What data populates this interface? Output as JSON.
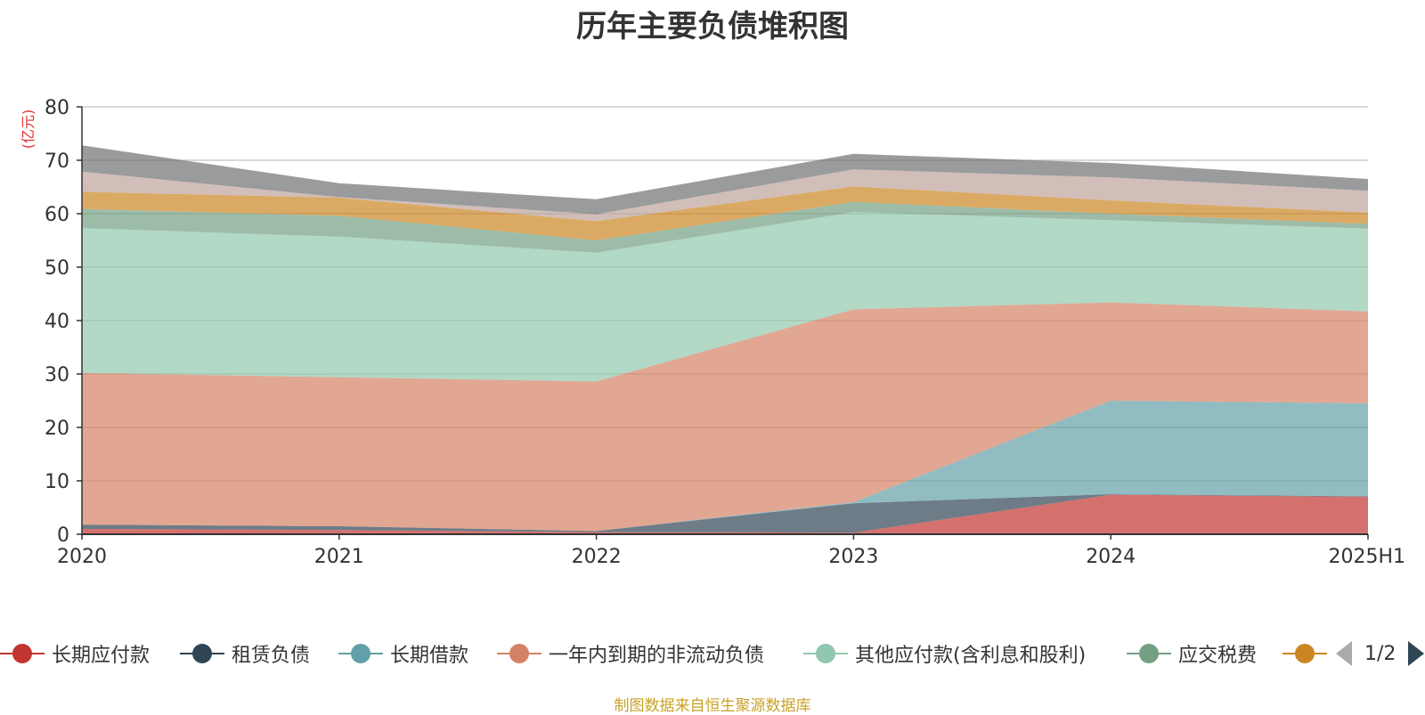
{
  "chart_data": {
    "type": "area",
    "stacked": true,
    "title": "历年主要负债堆积图",
    "ylabel": "(亿元)",
    "xlabel": "",
    "ylim": [
      0,
      80
    ],
    "yticks": [
      0,
      10,
      20,
      30,
      40,
      50,
      60,
      70,
      80
    ],
    "categories": [
      "2020",
      "2021",
      "2022",
      "2023",
      "2024",
      "2025H1"
    ],
    "grid": true,
    "series": [
      {
        "name": "长期应付款",
        "color": "#c23531",
        "values": [
          1.0,
          0.8,
          0.4,
          0.3,
          7.4,
          7.0
        ]
      },
      {
        "name": "租赁负债",
        "color": "#2f4554",
        "values": [
          0.8,
          0.7,
          0.2,
          5.5,
          0.1,
          0.1
        ]
      },
      {
        "name": "长期借款",
        "color": "#61a0a8",
        "values": [
          0.0,
          0.0,
          0.0,
          0.2,
          17.5,
          17.4
        ]
      },
      {
        "name": "一年内到期的非流动负债",
        "color": "#d48265",
        "values": [
          28.4,
          27.9,
          28.0,
          36.1,
          18.4,
          17.2
        ]
      },
      {
        "name": "其他应付款(含利息和股利)",
        "color": "#91c7ae",
        "values": [
          27.1,
          26.3,
          24.1,
          18.2,
          15.4,
          15.5
        ]
      },
      {
        "name": "应交税费",
        "color": "#749f83",
        "values": [
          3.6,
          3.9,
          2.3,
          1.9,
          1.2,
          0.9
        ]
      },
      {
        "name": "",
        "color": "#ca8622",
        "values": [
          3.2,
          3.4,
          3.6,
          2.9,
          2.5,
          2.1
        ]
      },
      {
        "name": "",
        "color": "#bda29a",
        "values": [
          3.8,
          0.1,
          1.3,
          3.2,
          4.3,
          4.1
        ]
      },
      {
        "name": "",
        "color": "#6e7074",
        "values": [
          4.9,
          2.6,
          2.8,
          2.9,
          2.7,
          2.2
        ]
      }
    ],
    "legend_position": "bottom"
  },
  "legend": {
    "page_text": "1/2"
  },
  "source_note": "制图数据来自恒生聚源数据库"
}
